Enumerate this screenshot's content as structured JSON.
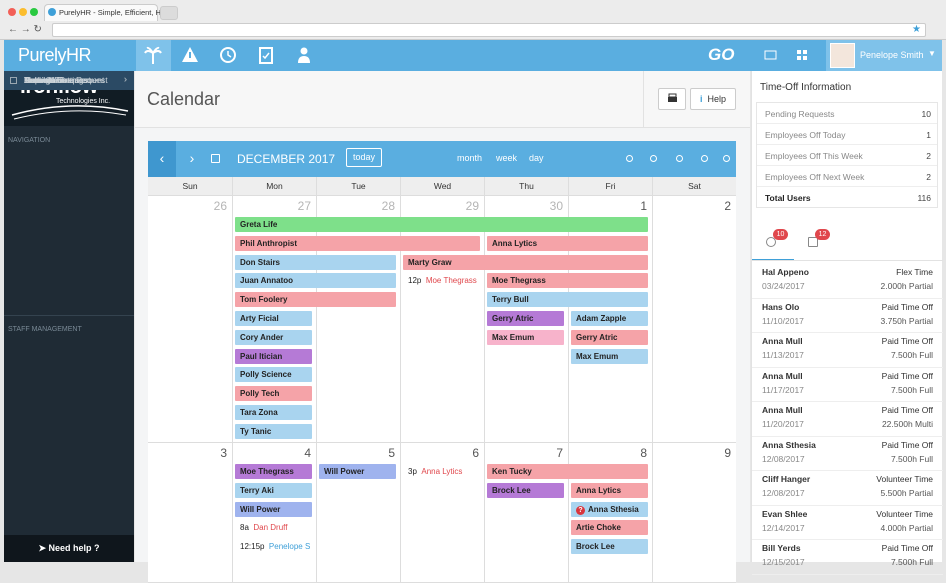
{
  "browser": {
    "tab_title": "PurelyHR - Simple, Efficient, H"
  },
  "header": {
    "logo": "PurelyHR",
    "go": "GO",
    "user": "Penelope Smith"
  },
  "sidebar": {
    "company": "ironflow",
    "company_sub": "Technologies Inc.",
    "nav_heading": "NAVIGATION",
    "nav": [
      {
        "label": "Calendar",
        "active": true
      },
      {
        "label": "Time-Off Request"
      },
      {
        "label": "Banked Time Request"
      },
      {
        "label": "Settings",
        "submenu": true
      },
      {
        "label": "Reports",
        "submenu": true
      },
      {
        "label": "Tools",
        "submenu": true
      },
      {
        "label": "Reminders",
        "submenu": true
      },
      {
        "label": "Account Settings"
      }
    ],
    "staff_heading": "STAFF MANAGEMENT",
    "staff": [
      {
        "label": "Manage Users",
        "submenu": true
      },
      {
        "label": "Email Announcement"
      }
    ],
    "help": "Need help ?"
  },
  "page": {
    "title": "Calendar",
    "help_button": "Help"
  },
  "calendar": {
    "month": "DECEMBER 2017",
    "today": "today",
    "views": [
      "month",
      "week",
      "day"
    ],
    "weekdays": [
      "Sun",
      "Mon",
      "Tue",
      "Wed",
      "Thu",
      "Fri",
      "Sat"
    ],
    "weeks": [
      {
        "days": [
          26,
          27,
          28,
          29,
          30,
          1,
          2
        ],
        "events": [
          {
            "name": "Greta Life",
            "start": 27,
            "end": 1,
            "color": "#7ee08a"
          },
          {
            "name": "Phil Anthropist",
            "start": 27,
            "end": 29,
            "color": "#f5a3a8"
          },
          {
            "name": "Anna Lytics",
            "start": 30,
            "end": 1,
            "color": "#f5a3a8"
          },
          {
            "name": "Don Stairs",
            "start": 27,
            "end": 28,
            "color": "#a9d4ef"
          },
          {
            "name": "Marty Graw",
            "start": 29,
            "end": 1,
            "color": "#f5a3a8"
          },
          {
            "name": "Juan Annatoo",
            "start": 27,
            "end": 28,
            "color": "#a9d4ef"
          },
          {
            "name": "Moe Thegrass",
            "time": "12p",
            "start": 29,
            "end": 29,
            "color": "#e0474c"
          },
          {
            "name": "Moe Thegrass",
            "start": 30,
            "end": 1,
            "color": "#f5a3a8"
          },
          {
            "name": "Tom Foolery",
            "start": 27,
            "end": 28,
            "color": "#f5a3a8"
          },
          {
            "name": "Terry Bull",
            "start": 30,
            "end": 1,
            "color": "#a9d4ef"
          },
          {
            "name": "Arty Ficial",
            "start": 27,
            "end": 27,
            "color": "#a9d4ef"
          },
          {
            "name": "Gerry Atric",
            "start": 30,
            "end": 30,
            "color": "#b57ad6"
          },
          {
            "name": "Adam Zapple",
            "start": 1,
            "end": 1,
            "color": "#a9d4ef"
          },
          {
            "name": "Cory Ander",
            "start": 27,
            "end": 27,
            "color": "#a9d4ef"
          },
          {
            "name": "Max Emum",
            "start": 30,
            "end": 30,
            "color": "#f7b3cb"
          },
          {
            "name": "Gerry Atric",
            "start": 1,
            "end": 1,
            "color": "#f5a3a8"
          },
          {
            "name": "Paul Itician",
            "start": 27,
            "end": 27,
            "color": "#b57ad6"
          },
          {
            "name": "Max Emum",
            "start": 1,
            "end": 1,
            "color": "#a9d4ef"
          },
          {
            "name": "Polly Science",
            "start": 27,
            "end": 27,
            "color": "#a9d4ef"
          },
          {
            "name": "Polly Tech",
            "start": 27,
            "end": 27,
            "color": "#f5a3a8"
          },
          {
            "name": "Tara Zona",
            "start": 27,
            "end": 27,
            "color": "#a9d4ef"
          },
          {
            "name": "Ty Tanic",
            "start": 27,
            "end": 27,
            "color": "#a9d4ef"
          }
        ]
      },
      {
        "days": [
          3,
          4,
          5,
          6,
          7,
          8,
          9
        ],
        "events": [
          {
            "name": "Moe Thegrass",
            "start": 4,
            "end": 4,
            "color": "#b57ad6"
          },
          {
            "name": "Will Power",
            "start": 5,
            "end": 5,
            "color": "#9fb3ee"
          },
          {
            "name": "Anna Lytics",
            "time": "3p",
            "start": 6,
            "end": 6,
            "color": "#e0474c"
          },
          {
            "name": "Ken Tucky",
            "start": 7,
            "end": 8,
            "color": "#f5a3a8"
          },
          {
            "name": "Terry Aki",
            "start": 4,
            "end": 4,
            "color": "#a9d4ef"
          },
          {
            "name": "Brock Lee",
            "start": 7,
            "end": 7,
            "color": "#b57ad6"
          },
          {
            "name": "Anna Lytics",
            "start": 8,
            "end": 8,
            "color": "#f5a3a8"
          },
          {
            "name": "Will Power",
            "start": 4,
            "end": 4,
            "color": "#9fb3ee"
          },
          {
            "name": "Anna Sthesia",
            "flag": "?",
            "start": 8,
            "end": 8,
            "color": "#a9d4ef"
          },
          {
            "name": "Dan Druff",
            "time": "8a",
            "start": 4,
            "end": 4,
            "color": "#e0474c"
          },
          {
            "name": "Artie Choke",
            "start": 8,
            "end": 8,
            "color": "#f5a3a8"
          },
          {
            "name": "Penelope S",
            "time": "12:15p",
            "start": 4,
            "end": 4,
            "color": "#3fa0d8"
          },
          {
            "name": "Brock Lee",
            "start": 8,
            "end": 8,
            "color": "#a9d4ef"
          }
        ]
      }
    ]
  },
  "timeoff": {
    "title": "Time-Off Information",
    "stats": [
      {
        "label": "Pending Requests",
        "value": 10
      },
      {
        "label": "Employees Off Today",
        "value": 1
      },
      {
        "label": "Employees Off This Week",
        "value": 2
      },
      {
        "label": "Employees Off Next Week",
        "value": 2
      },
      {
        "label": "Total Users",
        "value": 116,
        "bold": true
      }
    ],
    "badges": [
      10,
      12
    ],
    "requests": [
      {
        "name": "Hal Appeno",
        "date": "03/24/2017",
        "type": "Flex Time",
        "amount": "2.000h Partial"
      },
      {
        "name": "Hans Olo",
        "date": "11/10/2017",
        "type": "Paid Time Off",
        "amount": "3.750h Partial"
      },
      {
        "name": "Anna Mull",
        "date": "11/13/2017",
        "type": "Paid Time Off",
        "amount": "7.500h Full"
      },
      {
        "name": "Anna Mull",
        "date": "11/17/2017",
        "type": "Paid Time Off",
        "amount": "7.500h Full"
      },
      {
        "name": "Anna Mull",
        "date": "11/20/2017",
        "type": "Paid Time Off",
        "amount": "22.500h Multi"
      },
      {
        "name": "Anna Sthesia",
        "date": "12/08/2017",
        "type": "Paid Time Off",
        "amount": "7.500h Full"
      },
      {
        "name": "Cliff Hanger",
        "date": "12/08/2017",
        "type": "Volunteer Time",
        "amount": "5.500h Partial"
      },
      {
        "name": "Evan Shlee",
        "date": "12/14/2017",
        "type": "Volunteer Time",
        "amount": "4.000h Partial"
      },
      {
        "name": "Bill Yerds",
        "date": "12/15/2017",
        "type": "Paid Time Off",
        "amount": "7.500h Full"
      }
    ]
  }
}
